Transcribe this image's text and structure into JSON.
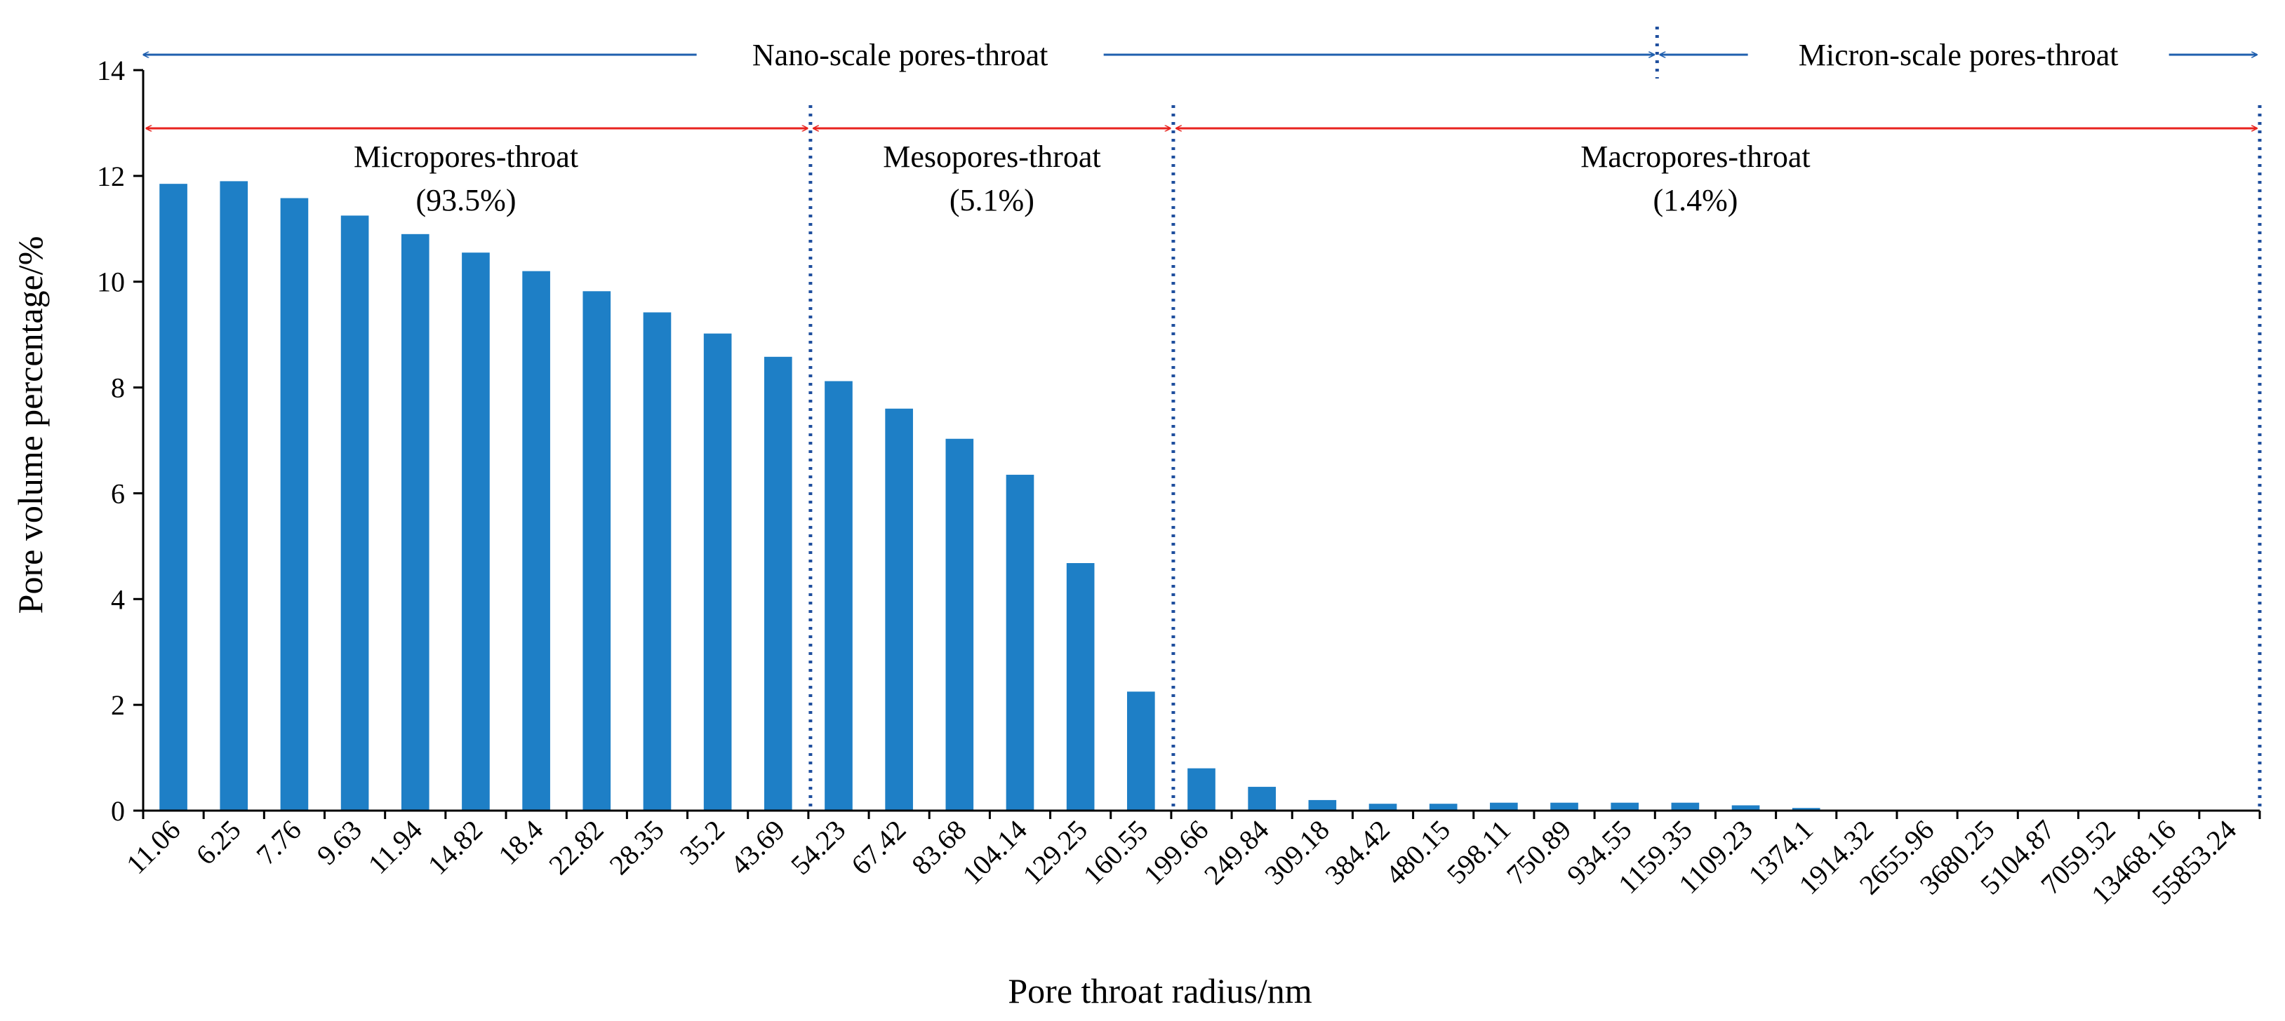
{
  "chart_data": {
    "type": "bar",
    "xlabel": "Pore throat radius/nm",
    "ylabel": "Pore volume percentage/%",
    "ylim": [
      0,
      14
    ],
    "yticks": [
      0,
      2,
      4,
      6,
      8,
      10,
      12,
      14
    ],
    "grid": false,
    "bar_color": "#1e7fc6",
    "categories": [
      "11.06",
      "6.25",
      "7.76",
      "9.63",
      "11.94",
      "14.82",
      "18.4",
      "22.82",
      "28.35",
      "35.2",
      "43.69",
      "54.23",
      "67.42",
      "83.68",
      "104.14",
      "129.25",
      "160.55",
      "199.66",
      "249.84",
      "309.18",
      "384.42",
      "480.15",
      "598.11",
      "750.89",
      "934.55",
      "1159.35",
      "1109.23",
      "1374.1",
      "1914.32",
      "2655.96",
      "3680.25",
      "5104.87",
      "7059.52",
      "13468.16",
      "55853.24"
    ],
    "values": [
      11.85,
      11.9,
      11.58,
      11.25,
      10.9,
      10.55,
      10.2,
      9.82,
      9.42,
      9.02,
      8.58,
      8.12,
      7.6,
      7.03,
      6.35,
      4.68,
      2.25,
      0.8,
      0.45,
      0.2,
      0.13,
      0.13,
      0.15,
      0.15,
      0.15,
      0.15,
      0.1,
      0.05,
      0,
      0,
      0,
      0,
      0,
      0,
      0
    ],
    "annotations": {
      "nano_label": "Nano-scale pores-throat",
      "micron_label": "Micron-scale pores-throat",
      "micropores_label": "Micropores-throat",
      "micropores_pct": "(93.5%)",
      "mesopores_label": "Mesopores-throat",
      "mesopores_pct": "(5.1%)",
      "macropores_label": "Macropores-throat",
      "macropores_pct": "(1.4%)"
    },
    "colors": {
      "blue_arrow": "#1f5fae",
      "red_arrow": "#e8231f",
      "divider": "#1f4f9e"
    }
  }
}
